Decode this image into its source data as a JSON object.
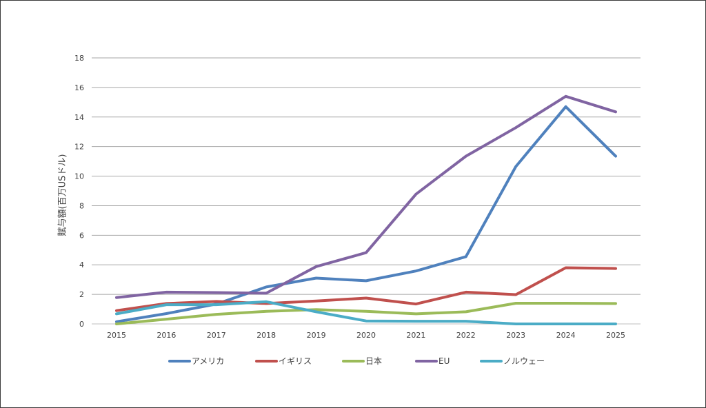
{
  "chart_data": {
    "type": "line",
    "title": "",
    "xlabel": "",
    "ylabel": "賦与額(百万USドル)",
    "x": [
      2015,
      2016,
      2017,
      2018,
      2019,
      2020,
      2021,
      2022,
      2023,
      2024,
      2025
    ],
    "ylim": [
      0,
      18
    ],
    "yticks": [
      0,
      2,
      4,
      6,
      8,
      10,
      12,
      14,
      16,
      18
    ],
    "grid": "horizontal",
    "legend": "bottom",
    "series": [
      {
        "name": "アメリカ",
        "color": "#4f81bd",
        "values": [
          0.15,
          0.7,
          1.35,
          2.5,
          3.1,
          2.92,
          3.58,
          4.55,
          10.65,
          14.7,
          11.35
        ]
      },
      {
        "name": "イギリス",
        "color": "#c0504d",
        "values": [
          0.9,
          1.38,
          1.52,
          1.38,
          1.55,
          1.75,
          1.35,
          2.15,
          1.98,
          3.8,
          3.75
        ]
      },
      {
        "name": "日本",
        "color": "#9bbb59",
        "values": [
          0.0,
          0.32,
          0.65,
          0.85,
          0.97,
          0.85,
          0.68,
          0.82,
          1.4,
          1.4,
          1.38
        ]
      },
      {
        "name": "EU",
        "color": "#8064a2",
        "values": [
          1.78,
          2.15,
          2.12,
          2.08,
          3.88,
          4.82,
          8.78,
          11.35,
          13.28,
          15.4,
          14.35
        ]
      },
      {
        "name": "ノルウェー",
        "color": "#4bacc6",
        "values": [
          0.68,
          1.3,
          1.3,
          1.5,
          0.82,
          0.2,
          0.18,
          0.18,
          0.0,
          0.0,
          0.0
        ]
      }
    ]
  }
}
